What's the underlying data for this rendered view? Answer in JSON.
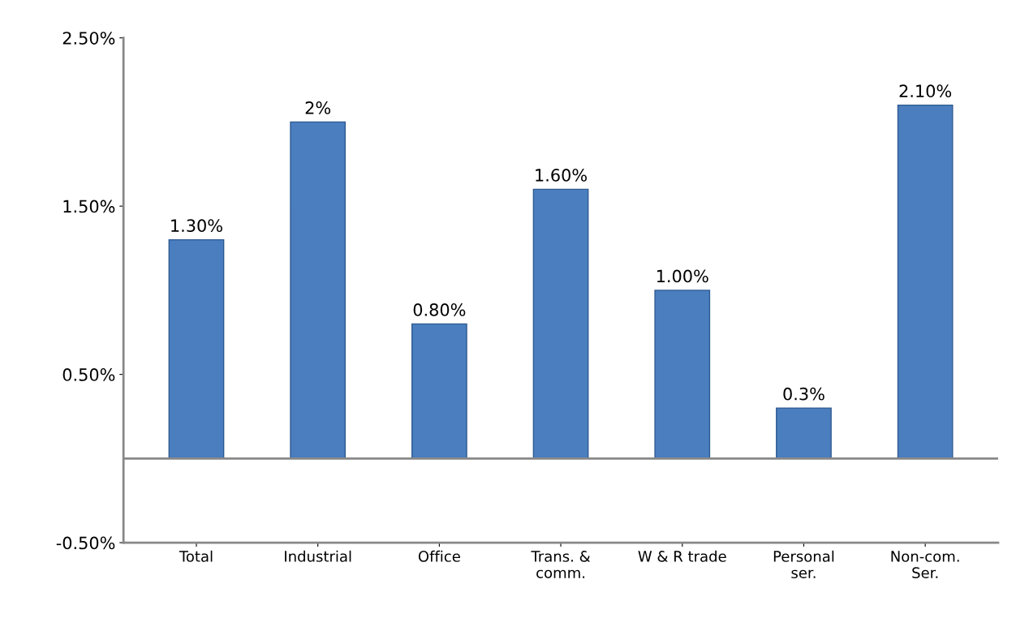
{
  "chart_data": {
    "type": "bar",
    "categories": [
      "Total",
      "Industrial",
      "Office",
      "Trans. &\ncomm.",
      "W & R trade",
      "Personal\nser.",
      "Non-com.\nSer."
    ],
    "values": [
      1.3,
      2,
      0.8,
      1.6,
      1.0,
      0.3,
      2.1
    ],
    "value_labels": [
      "1.30%",
      "2%",
      "0.80%",
      "1.60%",
      "1.00%",
      "0.3%",
      "2.10%"
    ],
    "color": "#4a7ebf",
    "ylim": [
      -0.5,
      2.5
    ],
    "yticks": [
      {
        "value": -0.5,
        "label": "-0.50%"
      },
      {
        "value": 0.5,
        "label": "0.50%"
      },
      {
        "value": 1.5,
        "label": "1.50%"
      },
      {
        "value": 2.5,
        "label": "2.50%"
      }
    ],
    "grid": false
  }
}
